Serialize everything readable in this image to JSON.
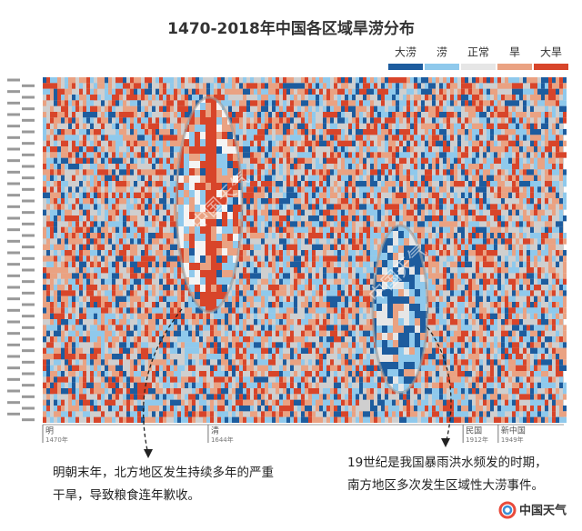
{
  "chart_data": {
    "type": "heatmap",
    "title": "1470-2018年中国各区域旱涝分布",
    "legend": [
      {
        "name": "大涝",
        "color": "#1d5c9e"
      },
      {
        "name": "涝",
        "color": "#8fc9ec"
      },
      {
        "name": "正常",
        "color": "#e6e6e6"
      },
      {
        "name": "旱",
        "color": "#eaa282"
      },
      {
        "name": "大旱",
        "color": "#d8452a"
      }
    ],
    "xlim": [
      1470,
      2018
    ],
    "eras": [
      {
        "name": "明",
        "start": {
          "value": 1470,
          "label": "1470年"
        }
      },
      {
        "name": "清",
        "start": {
          "value": 1644,
          "label": "1644年"
        }
      },
      {
        "name": "民国",
        "start": {
          "value": 1912,
          "label": "1912年"
        }
      },
      {
        "name": "新中国",
        "start": {
          "value": 1949,
          "label": "1949年"
        }
      }
    ],
    "annotations": [
      {
        "lines": [
          "明朝末年，北方地区发生持续多年的严重",
          "干旱，导致粮食连年歉收。"
        ]
      },
      {
        "lines": [
          "19世纪是我国暴雨洪水频发的时期，",
          "南方地区多次发生区域性大涝事件。"
        ]
      }
    ],
    "watermark": "中国天气",
    "logo": "中国天气"
  }
}
